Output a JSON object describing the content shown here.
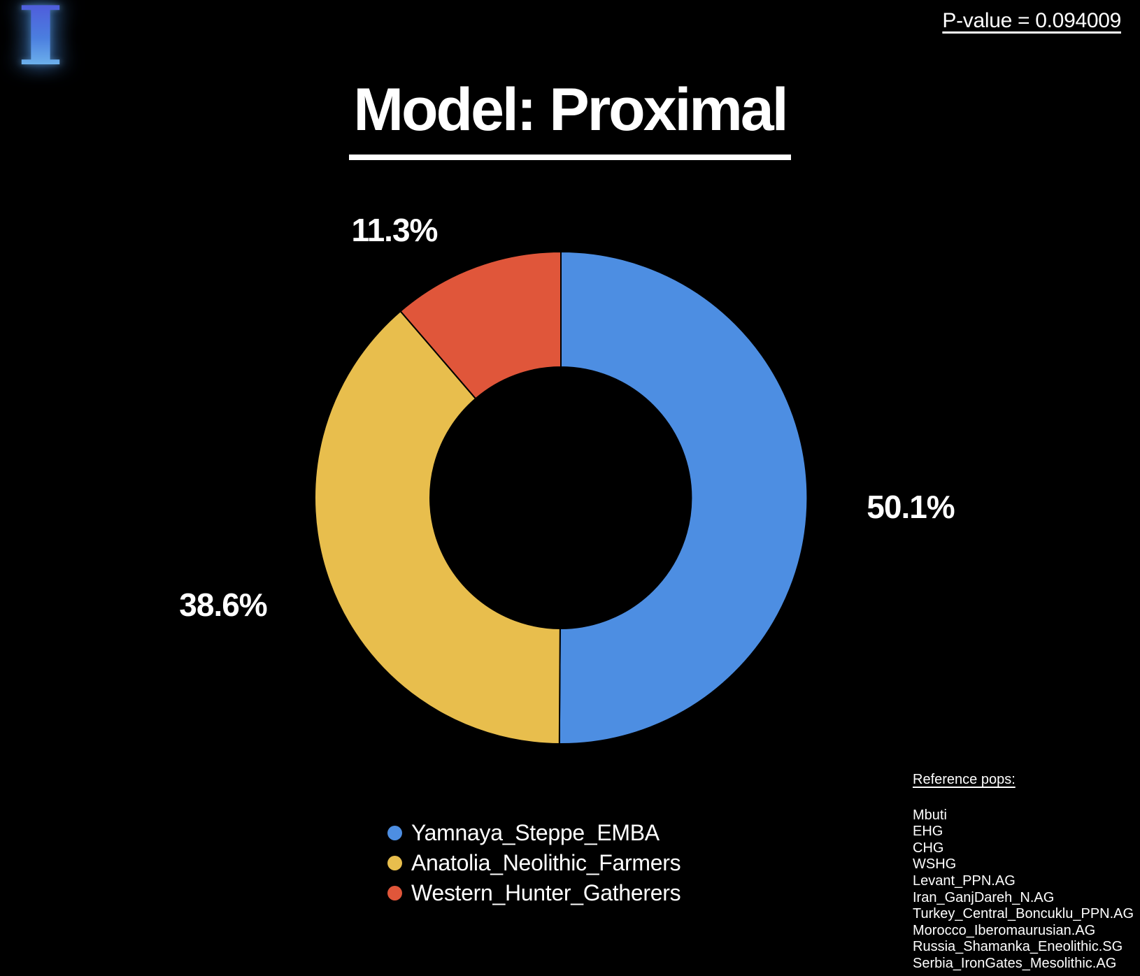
{
  "logo": {
    "letter": "I"
  },
  "p_value": {
    "text": "P-value = 0.094009"
  },
  "title": {
    "text": "Model: Proximal"
  },
  "chart_data": {
    "type": "pie",
    "subtype": "donut",
    "title": "Model: Proximal",
    "p_value": 0.094009,
    "categories": [
      "Yamnaya_Steppe_EMBA",
      "Anatolia_Neolithic_Farmers",
      "Western_Hunter_Gatherers"
    ],
    "values": [
      50.1,
      38.6,
      11.3
    ],
    "slice_labels": [
      "50.1%",
      "38.6%",
      "11.3%"
    ],
    "colors": [
      "#4D8EE2",
      "#E8BE4D",
      "#E0563A"
    ],
    "background": "#000000",
    "text_color": "#FFFFFF",
    "hole_ratio": 0.53,
    "legend_position": "bottom-center",
    "start_angle_deg": 0,
    "direction": "clockwise"
  },
  "reference_pops": {
    "heading": "Reference pops:",
    "items": [
      "Mbuti",
      "EHG",
      "CHG",
      "WSHG",
      "Levant_PPN.AG",
      "Iran_GanjDareh_N.AG",
      "Turkey_Central_Boncuklu_PPN.AG",
      "Morocco_Iberomaurusian.AG",
      "Russia_Shamanka_Eneolithic.SG",
      "Serbia_IronGates_Mesolithic.AG"
    ]
  }
}
